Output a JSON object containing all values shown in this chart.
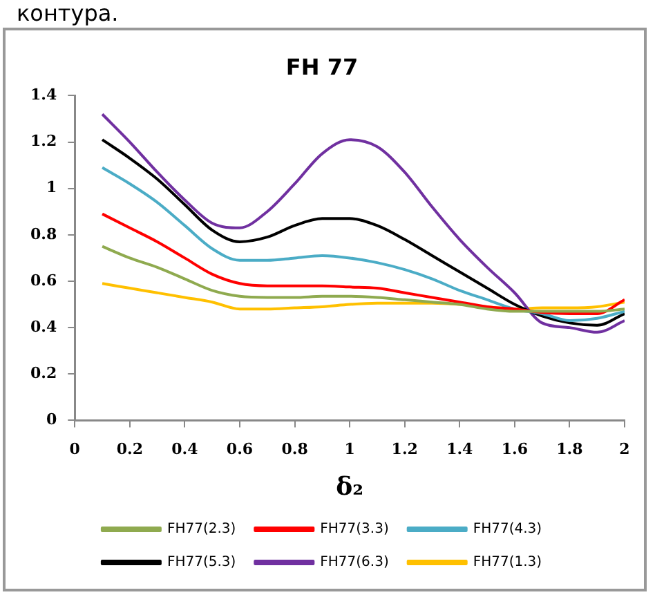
{
  "chart_data": {
    "type": "line",
    "title": "FH 77",
    "xlabel": "δ₂",
    "annotations": [
      "контура."
    ],
    "x": [
      0.1,
      0.2,
      0.3,
      0.4,
      0.5,
      0.6,
      0.7,
      0.8,
      0.9,
      1.0,
      1.1,
      1.2,
      1.3,
      1.4,
      1.5,
      1.6,
      1.7,
      1.8,
      1.9,
      2.0
    ],
    "xlim": [
      0,
      2
    ],
    "xticks": [
      0,
      0.2,
      0.4,
      0.6,
      0.8,
      1,
      1.2,
      1.4,
      1.6,
      1.8,
      2
    ],
    "ylim": [
      0,
      1.4
    ],
    "yticks": [
      0,
      0.2,
      0.4,
      0.6,
      0.8,
      1,
      1.2,
      1.4
    ],
    "grid": false,
    "legend": "bottom",
    "marker": "none",
    "line_style": "solid",
    "series": [
      {
        "name": "FH77(2.3)",
        "color": "#8faa4f",
        "values": [
          0.75,
          0.7,
          0.66,
          0.61,
          0.56,
          0.535,
          0.53,
          0.53,
          0.535,
          0.535,
          0.53,
          0.52,
          0.51,
          0.5,
          0.48,
          0.47,
          0.47,
          0.47,
          0.47,
          0.48
        ]
      },
      {
        "name": "FH77(3.3)",
        "color": "#ff0000",
        "values": [
          0.89,
          0.83,
          0.77,
          0.7,
          0.63,
          0.59,
          0.58,
          0.58,
          0.58,
          0.575,
          0.57,
          0.55,
          0.53,
          0.51,
          0.49,
          0.48,
          0.465,
          0.46,
          0.46,
          0.52
        ]
      },
      {
        "name": "FH77(4.3)",
        "color": "#4bacc6",
        "values": [
          1.09,
          1.02,
          0.94,
          0.84,
          0.74,
          0.69,
          0.69,
          0.7,
          0.71,
          0.7,
          0.68,
          0.65,
          0.61,
          0.56,
          0.52,
          0.48,
          0.46,
          0.43,
          0.44,
          0.47
        ]
      },
      {
        "name": "FH77(5.3)",
        "color": "#000000",
        "values": [
          1.21,
          1.13,
          1.04,
          0.93,
          0.82,
          0.77,
          0.79,
          0.84,
          0.87,
          0.87,
          0.84,
          0.78,
          0.71,
          0.64,
          0.57,
          0.5,
          0.45,
          0.42,
          0.41,
          0.46
        ]
      },
      {
        "name": "FH77(6.3)",
        "color": "#7030a0",
        "values": [
          1.32,
          1.2,
          1.07,
          0.95,
          0.85,
          0.83,
          0.9,
          1.02,
          1.15,
          1.21,
          1.18,
          1.07,
          0.92,
          0.78,
          0.66,
          0.55,
          0.42,
          0.4,
          0.38,
          0.43
        ]
      },
      {
        "name": "FH77(1.3)",
        "color": "#ffc000",
        "values": [
          0.59,
          0.57,
          0.55,
          0.53,
          0.51,
          0.48,
          0.48,
          0.485,
          0.49,
          0.5,
          0.505,
          0.505,
          0.505,
          0.5,
          0.49,
          0.48,
          0.485,
          0.485,
          0.49,
          0.51
        ]
      }
    ]
  }
}
